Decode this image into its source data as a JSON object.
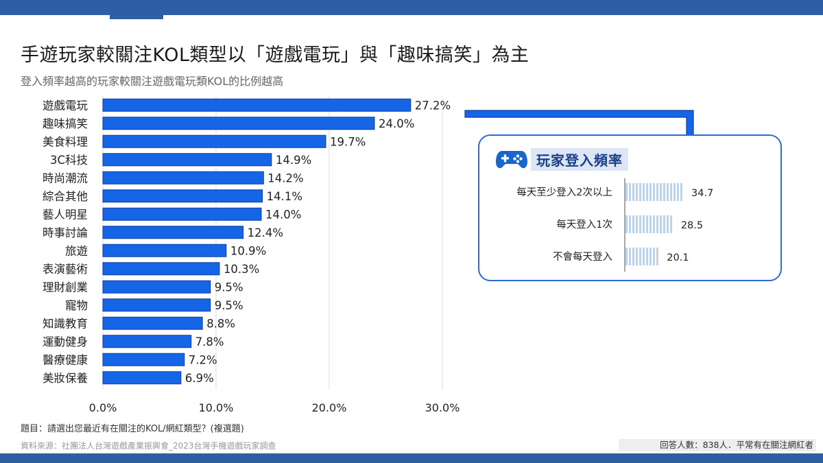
{
  "title": "手遊玩家較關注KOL類型以「遊戲電玩」與「趣味搞笑」為主",
  "subtitle": "登入頻率越高的玩家較關注遊戲電玩類KOL的比例越高",
  "colors": {
    "bar": "#1565e6",
    "bar_edge": "#0d3fa0",
    "inset_bar": "#bcd3ee",
    "frame": "#2e5fa4",
    "accent": "#2a6ad6"
  },
  "chart_data": [
    {
      "type": "bar",
      "orientation": "horizontal",
      "categories": [
        "遊戲電玩",
        "趣味搞笑",
        "美食料理",
        "3C科技",
        "時尚潮流",
        "綜合其他",
        "藝人明星",
        "時事討論",
        "旅遊",
        "表演藝術",
        "理財創業",
        "寵物",
        "知識教育",
        "運動健身",
        "醫療健康",
        "美妝保養"
      ],
      "values": [
        27.2,
        24.0,
        19.7,
        14.9,
        14.2,
        14.1,
        14.0,
        12.4,
        10.9,
        10.3,
        9.5,
        9.5,
        8.8,
        7.8,
        7.2,
        6.9
      ],
      "value_labels": [
        "27.2%",
        "24.0%",
        "19.7%",
        "14.9%",
        "14.2%",
        "14.1%",
        "14.0%",
        "12.4%",
        "10.9%",
        "10.3%",
        "9.5%",
        "9.5%",
        "8.8%",
        "7.8%",
        "7.2%",
        "6.9%"
      ],
      "xlim": [
        0,
        30
      ],
      "xticks": [
        0,
        10,
        20,
        30
      ],
      "xtick_labels": [
        "0.0%",
        "10.0%",
        "20.0%",
        "30.0%"
      ],
      "grid": true
    },
    {
      "type": "bar",
      "orientation": "horizontal",
      "title": "玩家登入頻率",
      "categories": [
        "每天至少登入2次以上",
        "每天登入1次",
        "不會每天登入"
      ],
      "values": [
        34.7,
        28.5,
        20.1
      ],
      "value_labels": [
        "34.7",
        "28.5",
        "20.1"
      ],
      "style": "vertical-stripes"
    }
  ],
  "footnote": "題目：請選出您最近有在關注的KOL/網紅類型？(複選題)",
  "source": "資料來源：社團法人台灣遊戲產業振興會_2023台灣手機遊戲玩家調查",
  "respondents": "回答人數：838人．平常有在關注網紅者",
  "icons": {
    "callout": "gamepad-icon"
  }
}
